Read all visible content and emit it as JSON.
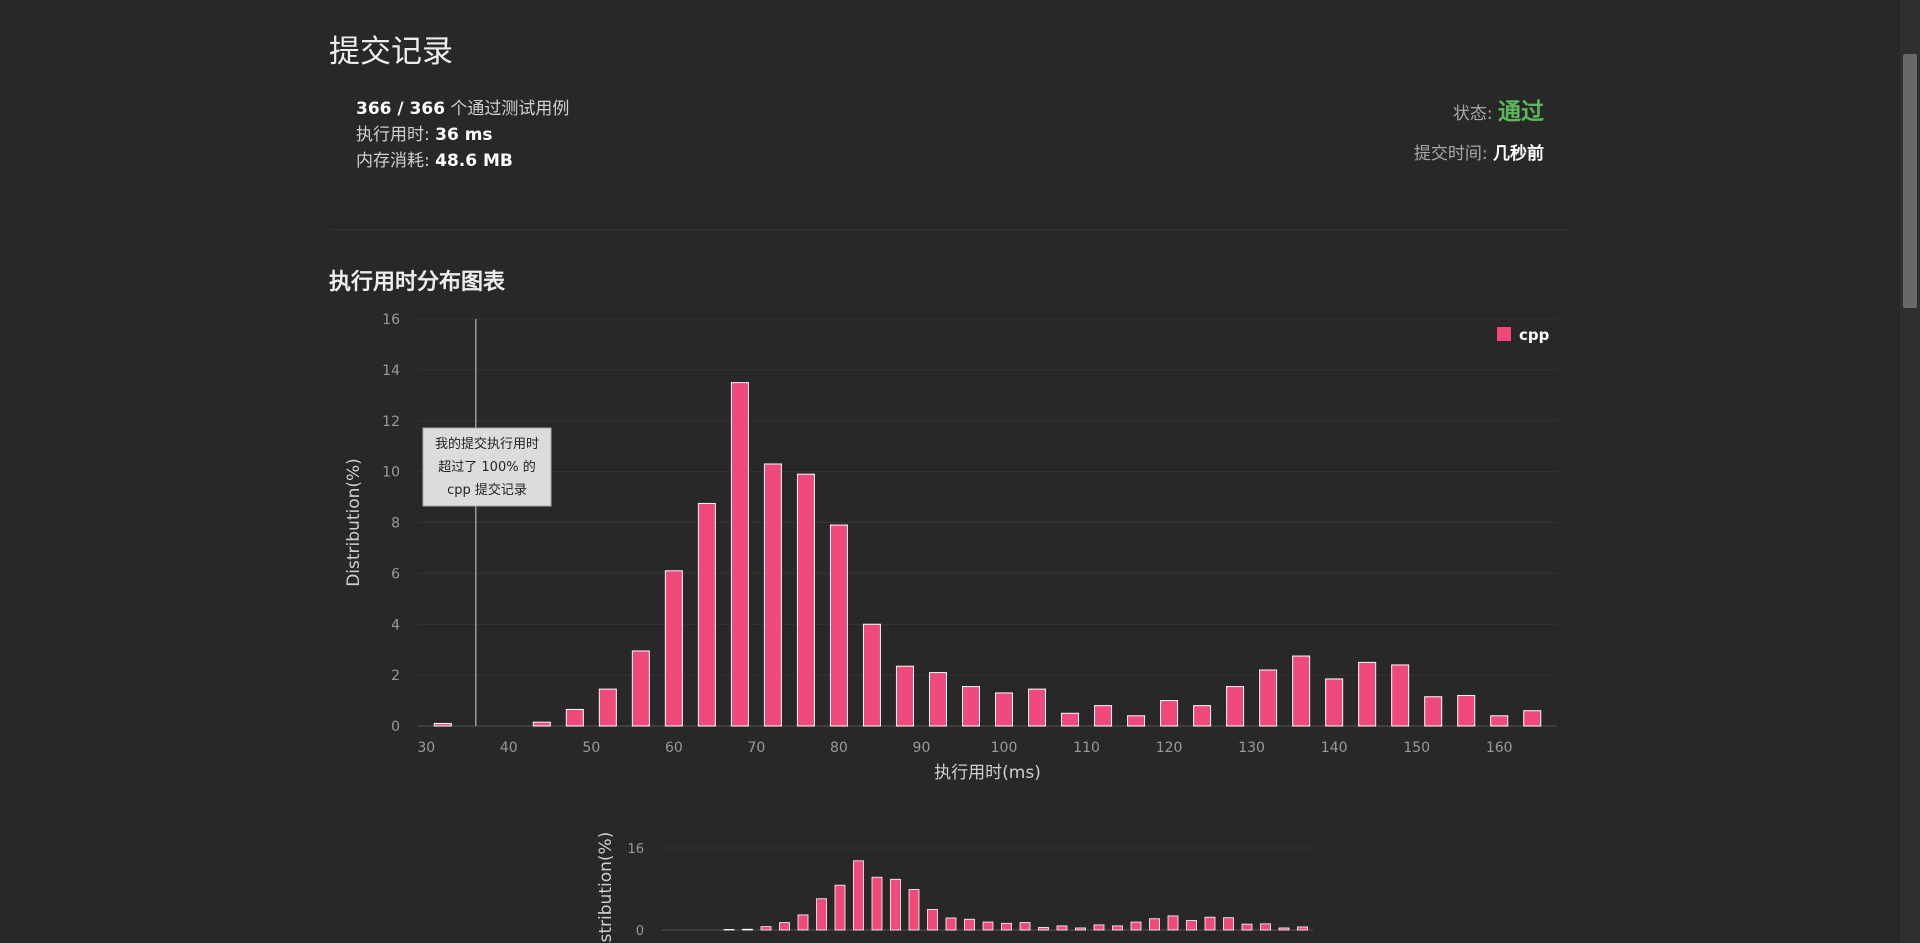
{
  "page": {
    "title": "提交记录",
    "summary": {
      "passed": "366 / 366",
      "passed_suffix": " 个通过测试用例",
      "runtime_label": "执行用时: ",
      "runtime_value": "36 ms",
      "memory_label": "内存消耗: ",
      "memory_value": "48.6 MB"
    },
    "status": {
      "label": "状态: ",
      "value": "通过",
      "submit_time_label": "提交时间: ",
      "submit_time_value": "几秒前"
    },
    "section_title": "执行用时分布图表"
  },
  "colors": {
    "bar": "#f0497b",
    "bar_stroke": "#ffffff",
    "status_pass": "#5cb85c"
  },
  "chart_data": [
    {
      "type": "bar",
      "title": "",
      "xlabel": "执行用时(ms)",
      "ylabel": "Distribution(%)",
      "xlim": [
        29,
        167
      ],
      "ylim": [
        0,
        16
      ],
      "y_ticks": [
        0,
        2,
        4,
        6,
        8,
        10,
        12,
        14,
        16
      ],
      "x_ticks": [
        30,
        40,
        50,
        60,
        70,
        80,
        90,
        100,
        110,
        120,
        130,
        140,
        150,
        160
      ],
      "grid": true,
      "legend": "top-right",
      "series": [
        {
          "name": "cpp",
          "x": [
            32,
            44,
            48,
            52,
            56,
            60,
            64,
            68,
            72,
            76,
            80,
            84,
            88,
            92,
            96,
            100,
            104,
            108,
            112,
            116,
            120,
            124,
            128,
            132,
            136,
            140,
            144,
            148,
            152,
            156,
            160,
            164
          ],
          "values": [
            0.1,
            0.15,
            0.65,
            1.45,
            2.95,
            6.1,
            8.75,
            13.5,
            10.3,
            9.9,
            7.9,
            4.0,
            2.35,
            2.1,
            1.55,
            1.3,
            1.45,
            0.5,
            0.8,
            0.4,
            1.0,
            0.8,
            1.55,
            2.2,
            2.75,
            1.85,
            2.5,
            2.4,
            1.15,
            1.2,
            0.4,
            0.6
          ]
        }
      ],
      "marker": {
        "x": 36,
        "annotation": [
          "我的提交执行用时",
          "超过了 100% 的",
          "cpp 提交记录"
        ]
      }
    },
    {
      "type": "bar",
      "title": "",
      "ylabel": "Distribution(%)",
      "ylim": [
        0,
        16
      ],
      "y_ticks": [
        0,
        16
      ],
      "series": [
        {
          "name": "cpp",
          "values": [
            0.1,
            0.15,
            0.65,
            1.45,
            2.95,
            6.1,
            8.75,
            13.5,
            10.3,
            9.9,
            7.9,
            4.0,
            2.35,
            2.1,
            1.55,
            1.3,
            1.45,
            0.5,
            0.8,
            0.4,
            1.0,
            0.8,
            1.55,
            2.2,
            2.75,
            1.85,
            2.5,
            2.4,
            1.15,
            1.2,
            0.4,
            0.6
          ]
        }
      ]
    }
  ]
}
